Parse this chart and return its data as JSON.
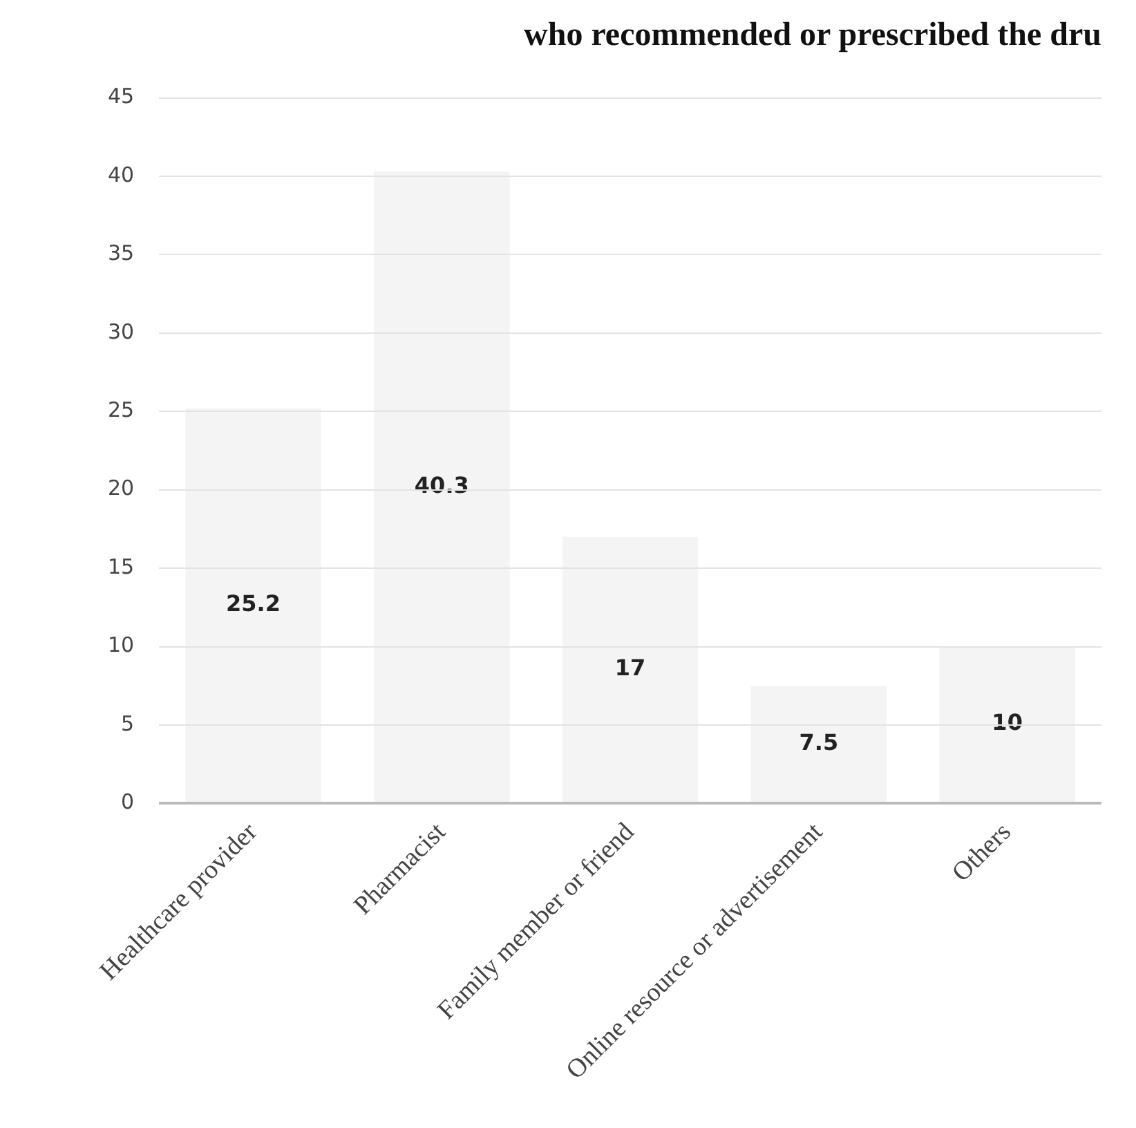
{
  "chart_data": {
    "type": "bar",
    "title": "who recommended or prescribed the dru",
    "categories": [
      "Healthcare provider",
      "Pharmacist",
      "Family member or friend",
      "Online resource or advertisement",
      "Others"
    ],
    "values": [
      25.2,
      40.3,
      17,
      7.5,
      10
    ],
    "color": "#f4f4f4",
    "ylim": [
      0,
      45
    ],
    "yticks": [
      0,
      5,
      10,
      15,
      20,
      25,
      30,
      35,
      40,
      45
    ],
    "grid": "y",
    "legend": false,
    "data_labels": true
  }
}
